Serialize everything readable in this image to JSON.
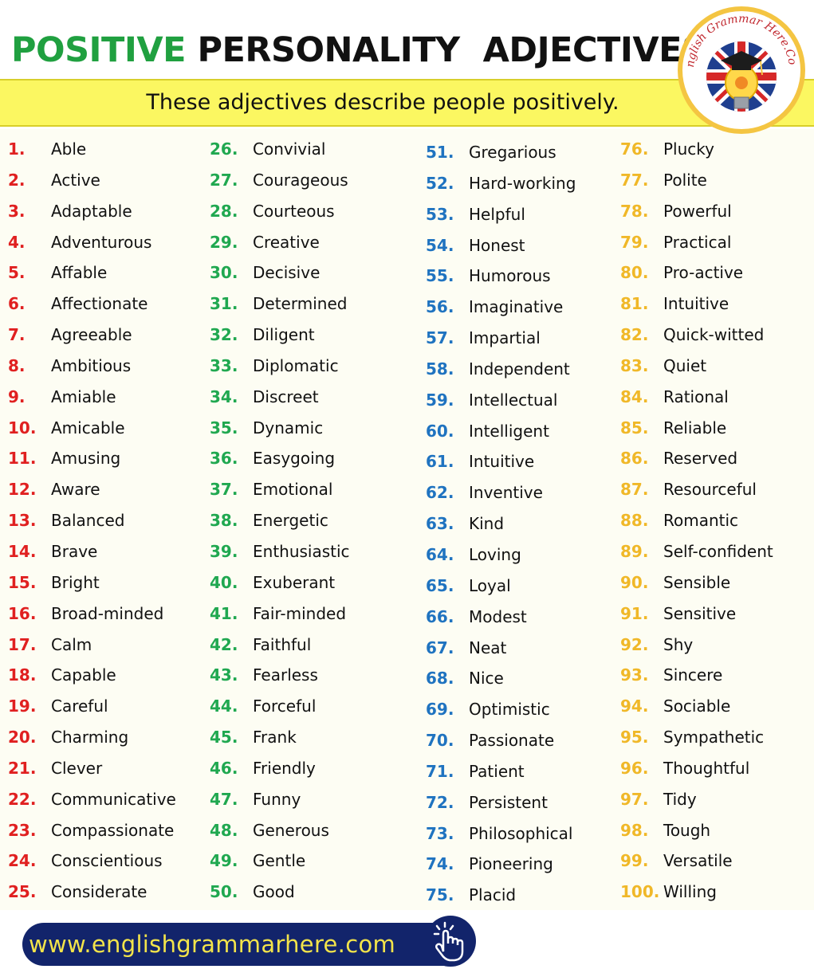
{
  "header": {
    "title_part1": "POSITIVE",
    "title_part2": "PERSONALITY  ADJECTIVES",
    "subtitle": "These adjectives describe people positively."
  },
  "logo": {
    "text": "English Grammar Here.Com",
    "icon": "lightbulb-graduation-cap-union-flag-logo-icon"
  },
  "colors": {
    "title_green": "#20a040",
    "subtitle_bar": "#fbf761",
    "col1_numbers": "#e02020",
    "col2_numbers": "#20a850",
    "col3_numbers": "#1f73c0",
    "col4_numbers": "#f0b828",
    "footer_bar": "#12246b",
    "footer_text": "#f3e44a"
  },
  "columns": [
    [
      {
        "n": "1.",
        "w": "Able"
      },
      {
        "n": "2.",
        "w": "Active"
      },
      {
        "n": "3.",
        "w": "Adaptable"
      },
      {
        "n": "4.",
        "w": "Adventurous"
      },
      {
        "n": "5.",
        "w": "Affable"
      },
      {
        "n": "6.",
        "w": "Affectionate"
      },
      {
        "n": "7.",
        "w": "Agreeable"
      },
      {
        "n": "8.",
        "w": "Ambitious"
      },
      {
        "n": "9.",
        "w": "Amiable"
      },
      {
        "n": "10.",
        "w": "Amicable"
      },
      {
        "n": "11.",
        "w": "Amusing"
      },
      {
        "n": "12.",
        "w": "Aware"
      },
      {
        "n": "13.",
        "w": "Balanced"
      },
      {
        "n": "14.",
        "w": "Brave"
      },
      {
        "n": "15.",
        "w": "Bright"
      },
      {
        "n": "16.",
        "w": "Broad-minded"
      },
      {
        "n": "17.",
        "w": "Calm"
      },
      {
        "n": "18.",
        "w": "Capable"
      },
      {
        "n": "19.",
        "w": "Careful"
      },
      {
        "n": "20.",
        "w": "Charming"
      },
      {
        "n": "21.",
        "w": "Clever"
      },
      {
        "n": "22.",
        "w": "Communicative"
      },
      {
        "n": "23.",
        "w": "Compassionate"
      },
      {
        "n": "24.",
        "w": "Conscientious"
      },
      {
        "n": "25.",
        "w": "Considerate"
      }
    ],
    [
      {
        "n": "26.",
        "w": "Convivial"
      },
      {
        "n": "27.",
        "w": "Courageous"
      },
      {
        "n": "28.",
        "w": "Courteous"
      },
      {
        "n": "29.",
        "w": "Creative"
      },
      {
        "n": "30.",
        "w": "Decisive"
      },
      {
        "n": "31.",
        "w": "Determined"
      },
      {
        "n": "32.",
        "w": "Diligent"
      },
      {
        "n": "33.",
        "w": "Diplomatic"
      },
      {
        "n": "34.",
        "w": "Discreet"
      },
      {
        "n": "35.",
        "w": "Dynamic"
      },
      {
        "n": "36.",
        "w": "Easygoing"
      },
      {
        "n": "37.",
        "w": "Emotional"
      },
      {
        "n": "38.",
        "w": "Energetic"
      },
      {
        "n": "39.",
        "w": "Enthusiastic"
      },
      {
        "n": "40.",
        "w": "Exuberant"
      },
      {
        "n": "41.",
        "w": "Fair-minded"
      },
      {
        "n": "42.",
        "w": "Faithful"
      },
      {
        "n": "43.",
        "w": "Fearless"
      },
      {
        "n": "44.",
        "w": "Forceful"
      },
      {
        "n": "45.",
        "w": "Frank"
      },
      {
        "n": "46.",
        "w": "Friendly"
      },
      {
        "n": "47.",
        "w": "Funny"
      },
      {
        "n": "48.",
        "w": "Generous"
      },
      {
        "n": "49.",
        "w": "Gentle"
      },
      {
        "n": "50.",
        "w": "Good"
      }
    ],
    [
      {
        "n": "51.",
        "w": "Gregarious"
      },
      {
        "n": "52.",
        "w": "Hard-working"
      },
      {
        "n": "53.",
        "w": "Helpful"
      },
      {
        "n": "54.",
        "w": "Honest"
      },
      {
        "n": "55.",
        "w": "Humorous"
      },
      {
        "n": "56.",
        "w": "Imaginative"
      },
      {
        "n": "57.",
        "w": "Impartial"
      },
      {
        "n": "58.",
        "w": "Independent"
      },
      {
        "n": "59.",
        "w": "Intellectual"
      },
      {
        "n": "60.",
        "w": "Intelligent"
      },
      {
        "n": "61.",
        "w": "Intuitive"
      },
      {
        "n": "62.",
        "w": "Inventive"
      },
      {
        "n": "63.",
        "w": "Kind"
      },
      {
        "n": "64.",
        "w": "Loving"
      },
      {
        "n": "65.",
        "w": "Loyal"
      },
      {
        "n": "66.",
        "w": "Modest"
      },
      {
        "n": "67.",
        "w": "Neat"
      },
      {
        "n": "68.",
        "w": "Nice"
      },
      {
        "n": "69.",
        "w": "Optimistic"
      },
      {
        "n": "70.",
        "w": "Passionate"
      },
      {
        "n": "71.",
        "w": "Patient"
      },
      {
        "n": "72.",
        "w": "Persistent"
      },
      {
        "n": "73.",
        "w": "Philosophical"
      },
      {
        "n": "74.",
        "w": "Pioneering"
      },
      {
        "n": "75.",
        "w": "Placid"
      }
    ],
    [
      {
        "n": "76.",
        "w": "Plucky"
      },
      {
        "n": "77.",
        "w": "Polite"
      },
      {
        "n": "78.",
        "w": "Powerful"
      },
      {
        "n": "79.",
        "w": "Practical"
      },
      {
        "n": "80.",
        "w": "Pro-active"
      },
      {
        "n": "81.",
        "w": "Intuitive"
      },
      {
        "n": "82.",
        "w": "Quick-witted"
      },
      {
        "n": "83.",
        "w": "Quiet"
      },
      {
        "n": "84.",
        "w": "Rational"
      },
      {
        "n": "85.",
        "w": "Reliable"
      },
      {
        "n": "86.",
        "w": "Reserved"
      },
      {
        "n": "87.",
        "w": "Resourceful"
      },
      {
        "n": "88.",
        "w": "Romantic"
      },
      {
        "n": "89.",
        "w": "Self-confident"
      },
      {
        "n": "90.",
        "w": "Sensible"
      },
      {
        "n": "91.",
        "w": "Sensitive"
      },
      {
        "n": "92.",
        "w": "Shy"
      },
      {
        "n": "93.",
        "w": "Sincere"
      },
      {
        "n": "94.",
        "w": "Sociable"
      },
      {
        "n": "95.",
        "w": "Sympathetic"
      },
      {
        "n": "96.",
        "w": "Thoughtful"
      },
      {
        "n": "97.",
        "w": "Tidy"
      },
      {
        "n": "98.",
        "w": "Tough"
      },
      {
        "n": "99.",
        "w": "Versatile"
      },
      {
        "n": "100.",
        "w": "Willing"
      }
    ]
  ],
  "footer": {
    "url": "www.englishgrammarhere.com",
    "icon": "pointing-hand-click-icon"
  }
}
